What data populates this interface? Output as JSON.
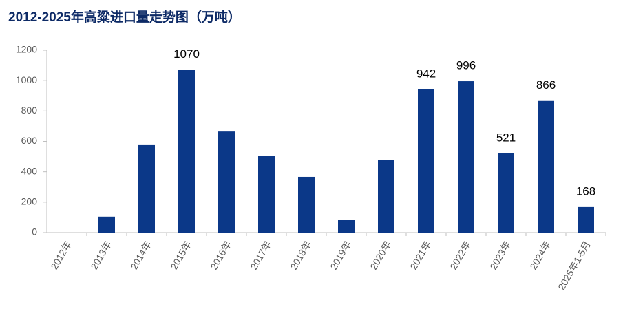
{
  "chart_data": {
    "type": "bar",
    "title": "2012-2025年高粱进口量走势图（万吨）",
    "categories": [
      "2012年",
      "2013年",
      "2014年",
      "2015年",
      "2016年",
      "2017年",
      "2018年",
      "2019年",
      "2020年",
      "2021年",
      "2022年",
      "2023年",
      "2024年",
      "2025年1-5月"
    ],
    "values": [
      0,
      105,
      580,
      1070,
      665,
      507,
      367,
      82,
      480,
      942,
      996,
      521,
      866,
      168
    ],
    "value_labels": [
      null,
      null,
      null,
      "1070",
      null,
      null,
      null,
      null,
      null,
      "942",
      "996",
      "521",
      "866",
      "168"
    ],
    "color": "#0b3888",
    "ylim": [
      0,
      1200
    ],
    "yticks": [
      0,
      200,
      400,
      600,
      800,
      1000,
      1200
    ],
    "grid": false
  }
}
